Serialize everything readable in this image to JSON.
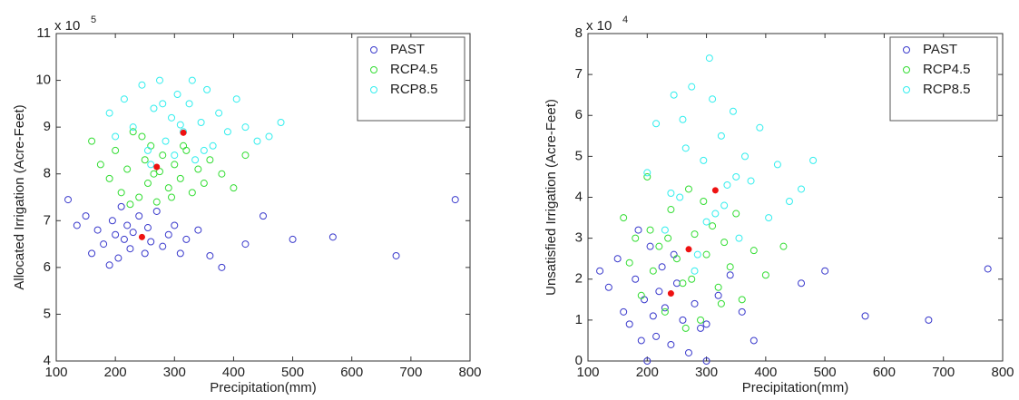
{
  "chart_data": [
    {
      "type": "scatter",
      "xlabel": "Precipitation(mm)",
      "ylabel": "Allocated Irrigation (Acre-Feet)",
      "y_multiplier": "x 10",
      "y_exponent": "5",
      "xlim": [
        100,
        800
      ],
      "xticks": [
        100,
        200,
        300,
        400,
        500,
        600,
        700,
        800
      ],
      "ylim": [
        4,
        11
      ],
      "yticks": [
        4,
        5,
        6,
        7,
        8,
        9,
        10,
        11
      ],
      "legend": "upper right",
      "series": [
        {
          "name": "PAST",
          "color": "#3a3acc",
          "x": [
            120,
            135,
            150,
            160,
            170,
            180,
            190,
            195,
            200,
            205,
            210,
            215,
            220,
            225,
            230,
            240,
            250,
            255,
            260,
            270,
            280,
            290,
            300,
            310,
            320,
            340,
            360,
            380,
            420,
            450,
            500,
            568,
            675,
            775
          ],
          "values": [
            7.45,
            6.9,
            7.1,
            6.3,
            6.8,
            6.5,
            6.05,
            7.0,
            6.7,
            6.2,
            7.3,
            6.6,
            6.9,
            6.4,
            6.75,
            7.1,
            6.3,
            6.85,
            6.55,
            7.2,
            6.45,
            6.7,
            6.9,
            6.3,
            6.6,
            6.8,
            6.25,
            6.0,
            6.5,
            7.1,
            6.6,
            6.65,
            6.25,
            7.45
          ]
        },
        {
          "name": "RCP4.5",
          "color": "#33dd33",
          "x": [
            160,
            175,
            190,
            200,
            210,
            220,
            230,
            240,
            250,
            255,
            260,
            265,
            270,
            280,
            290,
            300,
            310,
            320,
            330,
            340,
            350,
            360,
            380,
            400,
            420,
            245,
            275,
            295,
            225,
            315
          ],
          "values": [
            8.7,
            8.2,
            7.9,
            8.5,
            7.6,
            8.1,
            8.9,
            7.5,
            8.3,
            7.8,
            8.6,
            8.0,
            7.4,
            8.4,
            7.7,
            8.2,
            7.9,
            8.5,
            7.6,
            8.1,
            7.8,
            8.3,
            8.0,
            7.7,
            8.4,
            8.8,
            8.05,
            7.5,
            7.35,
            8.6
          ]
        },
        {
          "name": "RCP8.5",
          "color": "#33eeee",
          "x": [
            190,
            200,
            215,
            230,
            245,
            255,
            265,
            275,
            285,
            295,
            305,
            315,
            325,
            335,
            345,
            355,
            365,
            375,
            390,
            405,
            420,
            440,
            460,
            480,
            260,
            300,
            330,
            280,
            350,
            310
          ],
          "values": [
            9.3,
            8.8,
            9.6,
            9.0,
            9.9,
            8.5,
            9.4,
            10.0,
            8.7,
            9.2,
            9.7,
            8.9,
            9.5,
            8.3,
            9.1,
            9.8,
            8.6,
            9.3,
            8.9,
            9.6,
            9.0,
            8.7,
            8.8,
            9.1,
            8.2,
            8.4,
            10.0,
            9.5,
            8.5,
            9.05
          ]
        }
      ],
      "means": {
        "color": "#ee1111",
        "x": [
          245,
          270,
          315
        ],
        "values": [
          6.65,
          8.15,
          8.88
        ]
      }
    },
    {
      "type": "scatter",
      "xlabel": "Precipitation(mm)",
      "ylabel": "Unsatisfied Irrigation (Acre-Feet)",
      "y_multiplier": "x 10",
      "y_exponent": "4",
      "xlim": [
        100,
        800
      ],
      "xticks": [
        100,
        200,
        300,
        400,
        500,
        600,
        700,
        800
      ],
      "ylim": [
        0,
        8
      ],
      "yticks": [
        0,
        1,
        2,
        3,
        4,
        5,
        6,
        7,
        8
      ],
      "legend": "upper right",
      "series": [
        {
          "name": "PAST",
          "color": "#3a3acc",
          "x": [
            120,
            135,
            150,
            160,
            170,
            180,
            190,
            195,
            200,
            205,
            210,
            215,
            220,
            225,
            230,
            240,
            250,
            260,
            270,
            280,
            290,
            300,
            320,
            340,
            360,
            380,
            460,
            500,
            568,
            675,
            775,
            185,
            245,
            300
          ],
          "values": [
            2.2,
            1.8,
            2.5,
            1.2,
            0.9,
            2.0,
            0.5,
            1.5,
            0.0,
            2.8,
            1.1,
            0.6,
            1.7,
            2.3,
            1.3,
            0.4,
            1.9,
            1.0,
            0.2,
            1.4,
            0.8,
            0.0,
            1.6,
            2.1,
            1.2,
            0.5,
            1.9,
            2.2,
            1.1,
            1.0,
            2.25,
            3.2,
            2.6,
            0.9
          ]
        },
        {
          "name": "RCP4.5",
          "color": "#33dd33",
          "x": [
            160,
            170,
            180,
            190,
            200,
            210,
            220,
            230,
            240,
            250,
            260,
            270,
            280,
            290,
            300,
            310,
            320,
            330,
            340,
            350,
            360,
            380,
            400,
            430,
            235,
            265,
            295,
            325,
            205,
            275
          ],
          "values": [
            3.5,
            2.4,
            3.0,
            1.6,
            4.5,
            2.2,
            2.8,
            1.2,
            3.7,
            2.5,
            1.9,
            4.2,
            3.1,
            1.0,
            2.6,
            3.3,
            1.8,
            2.9,
            2.3,
            3.6,
            1.5,
            2.7,
            2.1,
            2.8,
            3.0,
            0.8,
            3.9,
            1.4,
            3.2,
            2.0
          ]
        },
        {
          "name": "RCP8.5",
          "color": "#33eeee",
          "x": [
            200,
            215,
            230,
            245,
            255,
            265,
            275,
            285,
            295,
            305,
            315,
            325,
            335,
            345,
            355,
            365,
            375,
            390,
            405,
            420,
            440,
            460,
            480,
            310,
            280,
            330,
            260,
            350,
            300,
            240
          ],
          "values": [
            4.6,
            5.8,
            3.2,
            6.5,
            4.0,
            5.2,
            6.7,
            2.6,
            4.9,
            7.4,
            3.6,
            5.5,
            4.3,
            6.1,
            3.0,
            5.0,
            4.4,
            5.7,
            3.5,
            4.8,
            3.9,
            4.2,
            4.9,
            6.4,
            2.2,
            3.8,
            5.9,
            4.5,
            3.4,
            4.1
          ]
        }
      ],
      "means": {
        "color": "#ee1111",
        "x": [
          240,
          270,
          315
        ],
        "values": [
          1.65,
          2.73,
          4.17
        ]
      }
    }
  ]
}
